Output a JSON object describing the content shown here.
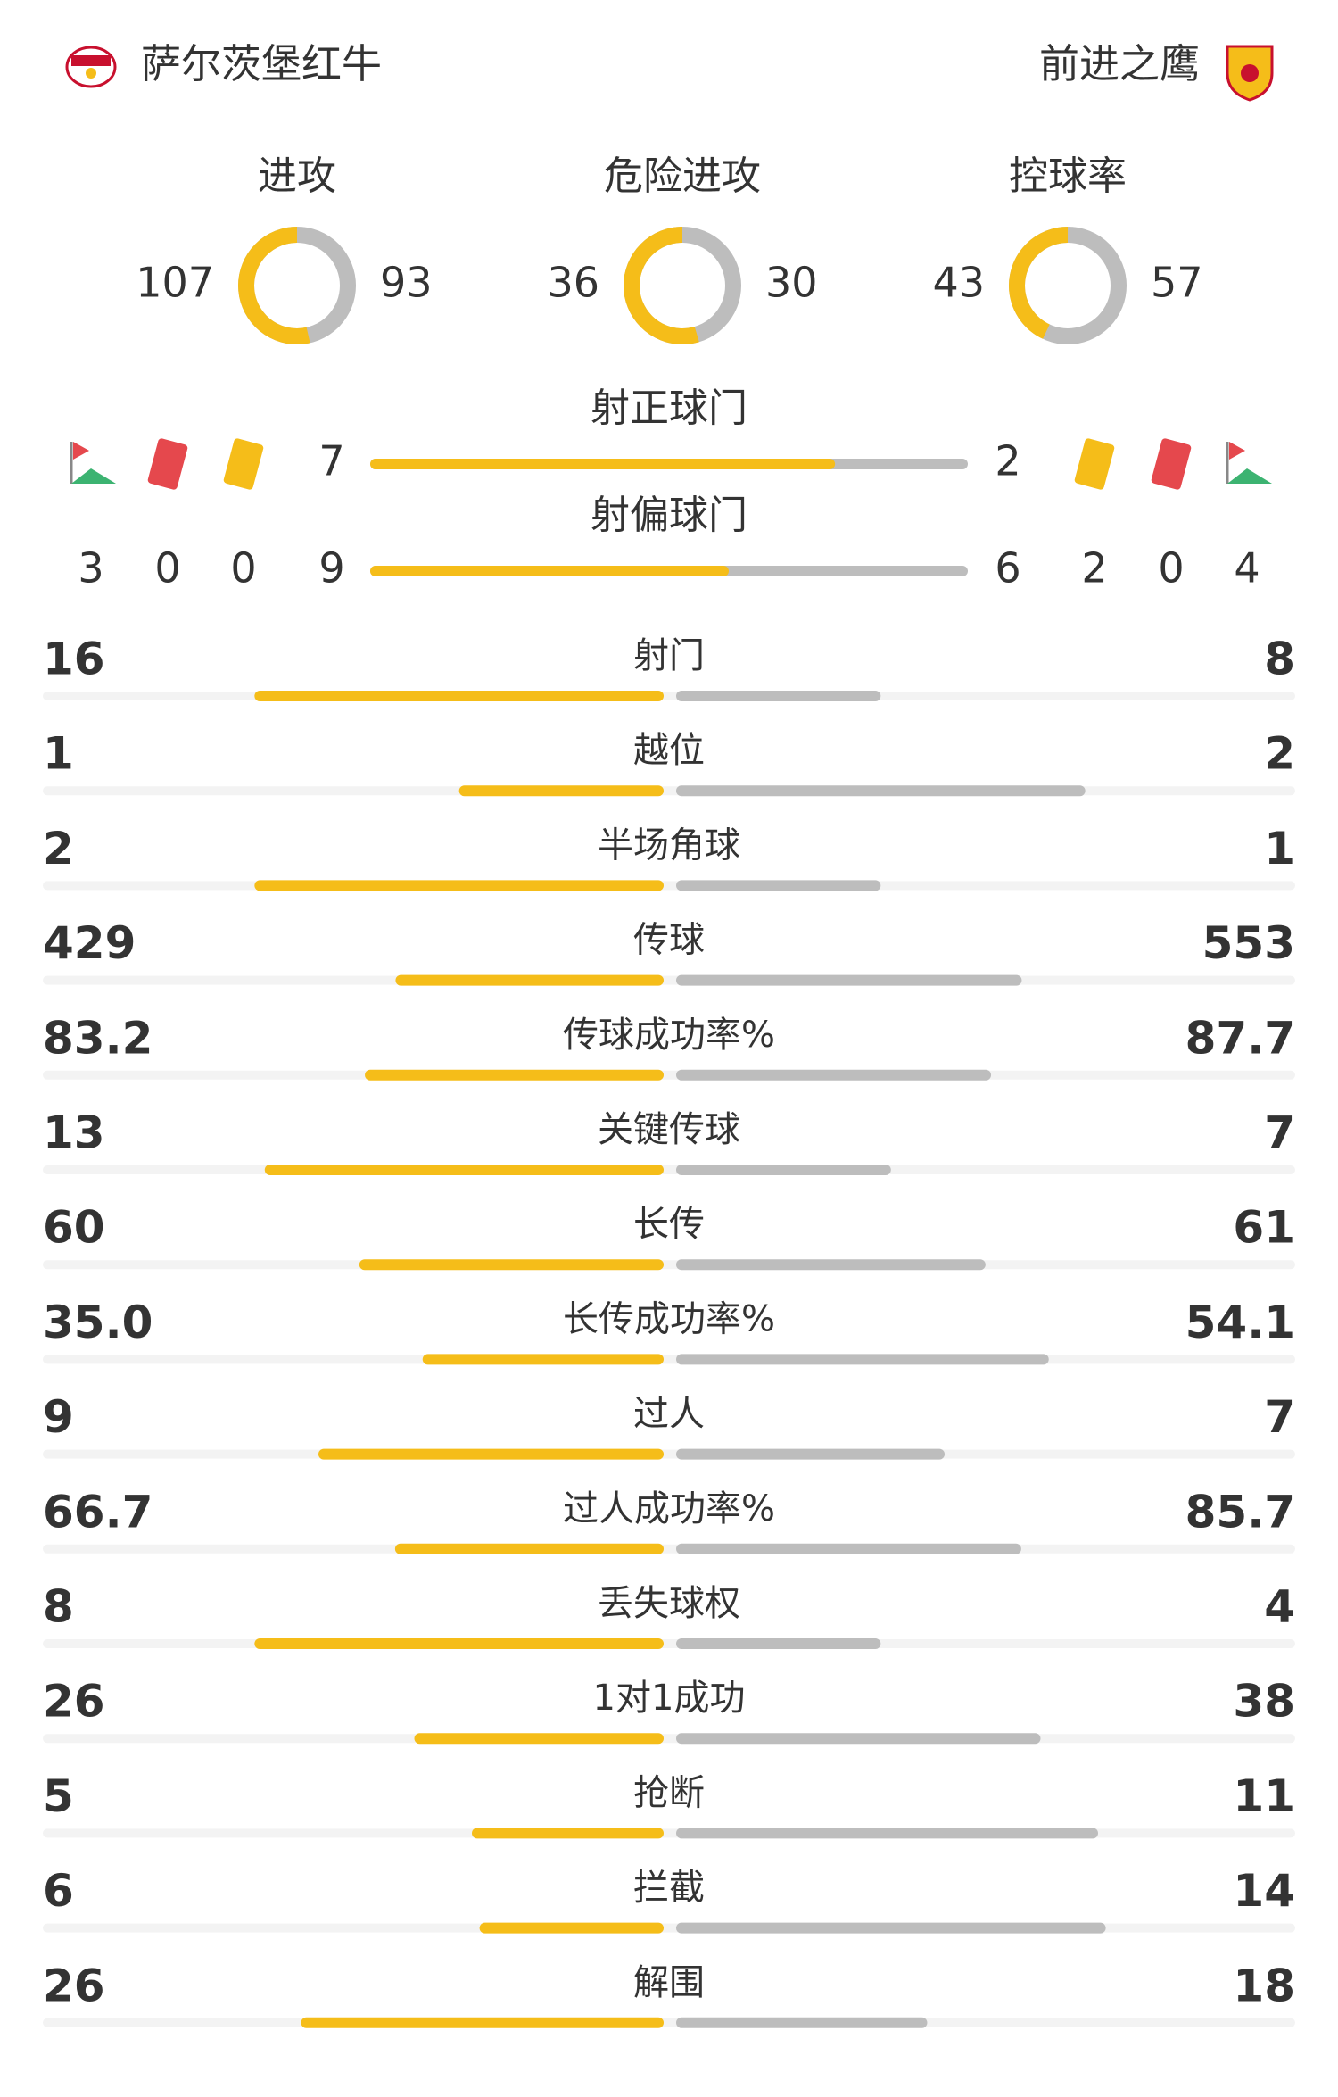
{
  "header": {
    "home": "萨尔茨堡红牛",
    "away": "前进之鹰"
  },
  "rings": [
    {
      "label": "进攻",
      "home": 107,
      "away": 93
    },
    {
      "label": "危险进攻",
      "home": 36,
      "away": 30
    },
    {
      "label": "控球率",
      "home": 43,
      "away": 57
    }
  ],
  "shots": [
    {
      "label": "射正球门",
      "home": 7,
      "away": 2
    },
    {
      "label": "射偏球门",
      "home": 9,
      "away": 6
    }
  ],
  "discipline": {
    "home": {
      "corners": 3,
      "red": 0,
      "yellow": 0
    },
    "away": {
      "yellow": 2,
      "red": 0,
      "corners": 4
    }
  },
  "stats": [
    {
      "label": "射门",
      "home": 16,
      "away": 8
    },
    {
      "label": "越位",
      "home": 1,
      "away": 2
    },
    {
      "label": "半场角球",
      "home": 2,
      "away": 1
    },
    {
      "label": "传球",
      "home": 429,
      "away": 553
    },
    {
      "label": "传球成功率%",
      "home": 83.2,
      "away": 87.7
    },
    {
      "label": "关键传球",
      "home": 13,
      "away": 7
    },
    {
      "label": "长传",
      "home": 60,
      "away": 61
    },
    {
      "label": "长传成功率%",
      "home": {
        "value": 35,
        "label": "35.0"
      },
      "away": 54.1
    },
    {
      "label": "过人",
      "home": 9,
      "away": 7
    },
    {
      "label": "过人成功率%",
      "home": 66.7,
      "away": 85.7
    },
    {
      "label": "丢失球权",
      "home": 8,
      "away": 4
    },
    {
      "label": "1对1成功",
      "home": 26,
      "away": 38
    },
    {
      "label": "抢断",
      "home": 5,
      "away": 11
    },
    {
      "label": "拦截",
      "home": 6,
      "away": 14
    },
    {
      "label": "解围",
      "home": 26,
      "away": 18
    }
  ]
}
